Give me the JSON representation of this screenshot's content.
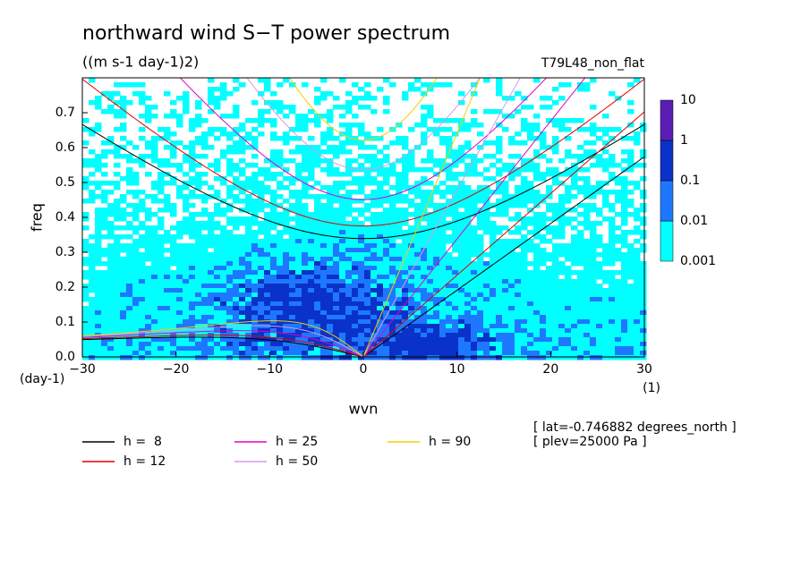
{
  "chart_data": {
    "type": "spectrum",
    "title": "northward wind S−T power spectrum",
    "subtitle": "((m s-1 day-1)2)",
    "run_label": "T79L48_non_flat",
    "y_label": "freq",
    "x_label": "wvn",
    "y_unit": "(day-1)",
    "x_unit": "(1)",
    "annotations": [
      "[ lat=-0.746882 degrees_north ]",
      "[ plev=25000 Pa ]"
    ],
    "xlim": [
      -30,
      30
    ],
    "xticks": [
      {
        "value": -30,
        "label": "−30"
      },
      {
        "value": -20,
        "label": "−20"
      },
      {
        "value": -10,
        "label": "−10"
      },
      0,
      10,
      20,
      30
    ],
    "ylim": [
      0,
      0.8
    ],
    "yticks": [
      {
        "value": 0,
        "label": "0.0"
      },
      0.1,
      0.2,
      0.3,
      0.4,
      0.5,
      0.6,
      0.7
    ],
    "colorbar": {
      "levels": [
        0.001,
        0.01,
        0.1,
        1,
        10
      ],
      "colors": [
        "#00ffff",
        "#1e78ff",
        "#0a32c8",
        "#5a1eb4"
      ]
    },
    "series": [
      {
        "name": "h =  8",
        "h": 8,
        "color": "#000000"
      },
      {
        "name": "h = 12",
        "h": 12,
        "color": "#e00000"
      },
      {
        "name": "h = 25",
        "h": 25,
        "color": "#e000c8"
      },
      {
        "name": "h = 50",
        "h": 50,
        "color": "#d49be6"
      },
      {
        "name": "h = 90",
        "h": 90,
        "color": "#f0d000"
      }
    ]
  }
}
